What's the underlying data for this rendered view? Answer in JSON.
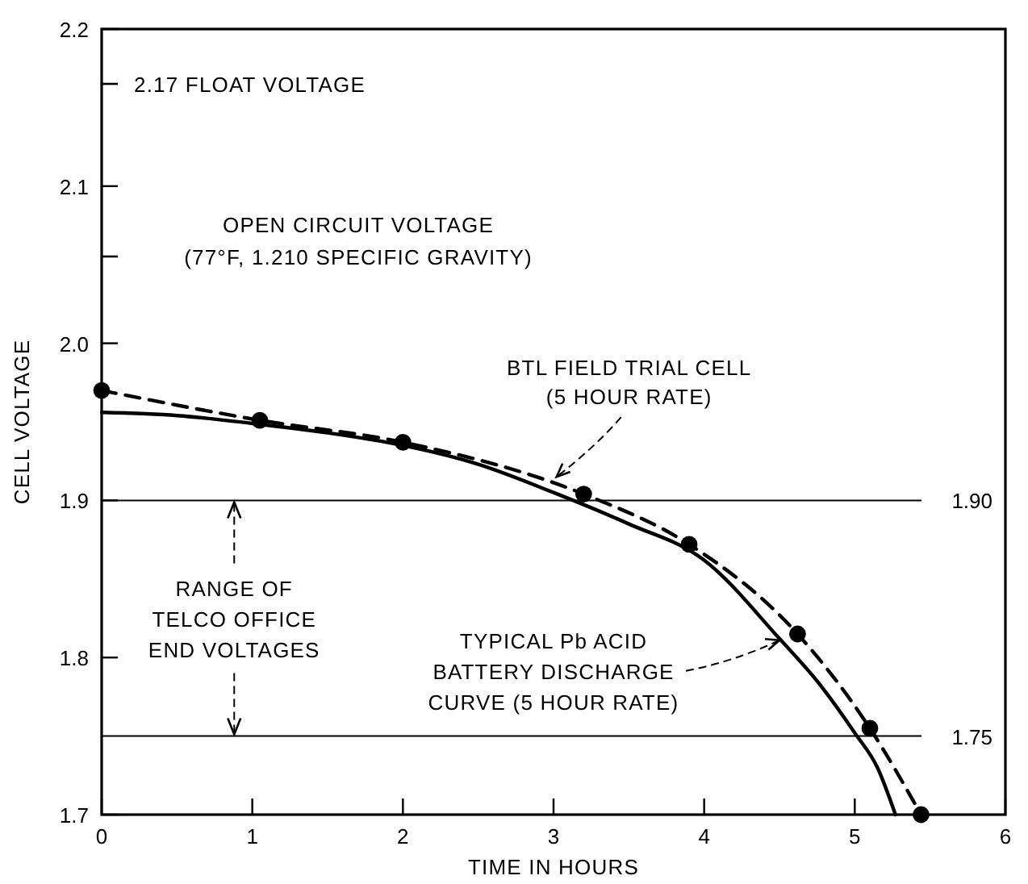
{
  "chart_data": {
    "type": "line",
    "xlabel": "TIME IN HOURS",
    "ylabel": "CELL VOLTAGE",
    "xlim": [
      0,
      6
    ],
    "xticks": [
      0,
      1,
      2,
      3,
      4,
      5,
      6
    ],
    "ylim": [
      1.7,
      2.2
    ],
    "yticks": [
      1.7,
      1.8,
      1.9,
      {
        "value": 2.0,
        "label": "2.0"
      },
      2.1,
      2.2
    ],
    "grid": false,
    "series": [
      {
        "color": "#000000",
        "line_style": "solid",
        "marker": "none",
        "x": [
          0,
          0.5,
          1,
          1.5,
          2,
          2.5,
          3,
          3.5,
          4,
          4.5,
          4.75,
          5,
          5.15,
          5.27
        ],
        "values": [
          1.956,
          1.954,
          1.949,
          1.943,
          1.935,
          1.923,
          1.905,
          1.885,
          1.862,
          1.812,
          1.785,
          1.752,
          1.73,
          1.7
        ]
      },
      {
        "color": "#000000",
        "line_style": "dashed",
        "marker": "circle",
        "x": [
          0,
          1.05,
          2,
          3.2,
          3.9,
          4.62,
          5.1,
          5.44
        ],
        "values": [
          1.97,
          1.951,
          1.937,
          1.904,
          1.872,
          1.815,
          1.755,
          1.7
        ]
      }
    ],
    "ref_lines": [
      {
        "axis": "y",
        "value": 1.9,
        "label": "1.90",
        "color": "#000000"
      },
      {
        "axis": "y",
        "value": 1.75,
        "label": "1.75",
        "color": "#000000"
      }
    ],
    "annotations": [
      "2.17 FLOAT VOLTAGE",
      "OPEN CIRCUIT VOLTAGE\n(77°F, 1.210 SPECIFIC GRAVITY)",
      {
        "text": "BTL FIELD TRIAL CELL\n(5 HOUR RATE)",
        "x": 3.02,
        "y": 1.915
      },
      {
        "text": "TYPICAL Pb ACID\nBATTERY DISCHARGE\nCURVE (5 HOUR RATE)",
        "x": 4.5,
        "y": 1.811
      },
      {
        "text": "RANGE OF\nTELCO OFFICE\nEND VOLTAGES",
        "x": 0.88,
        "y": 1.9
      }
    ]
  }
}
